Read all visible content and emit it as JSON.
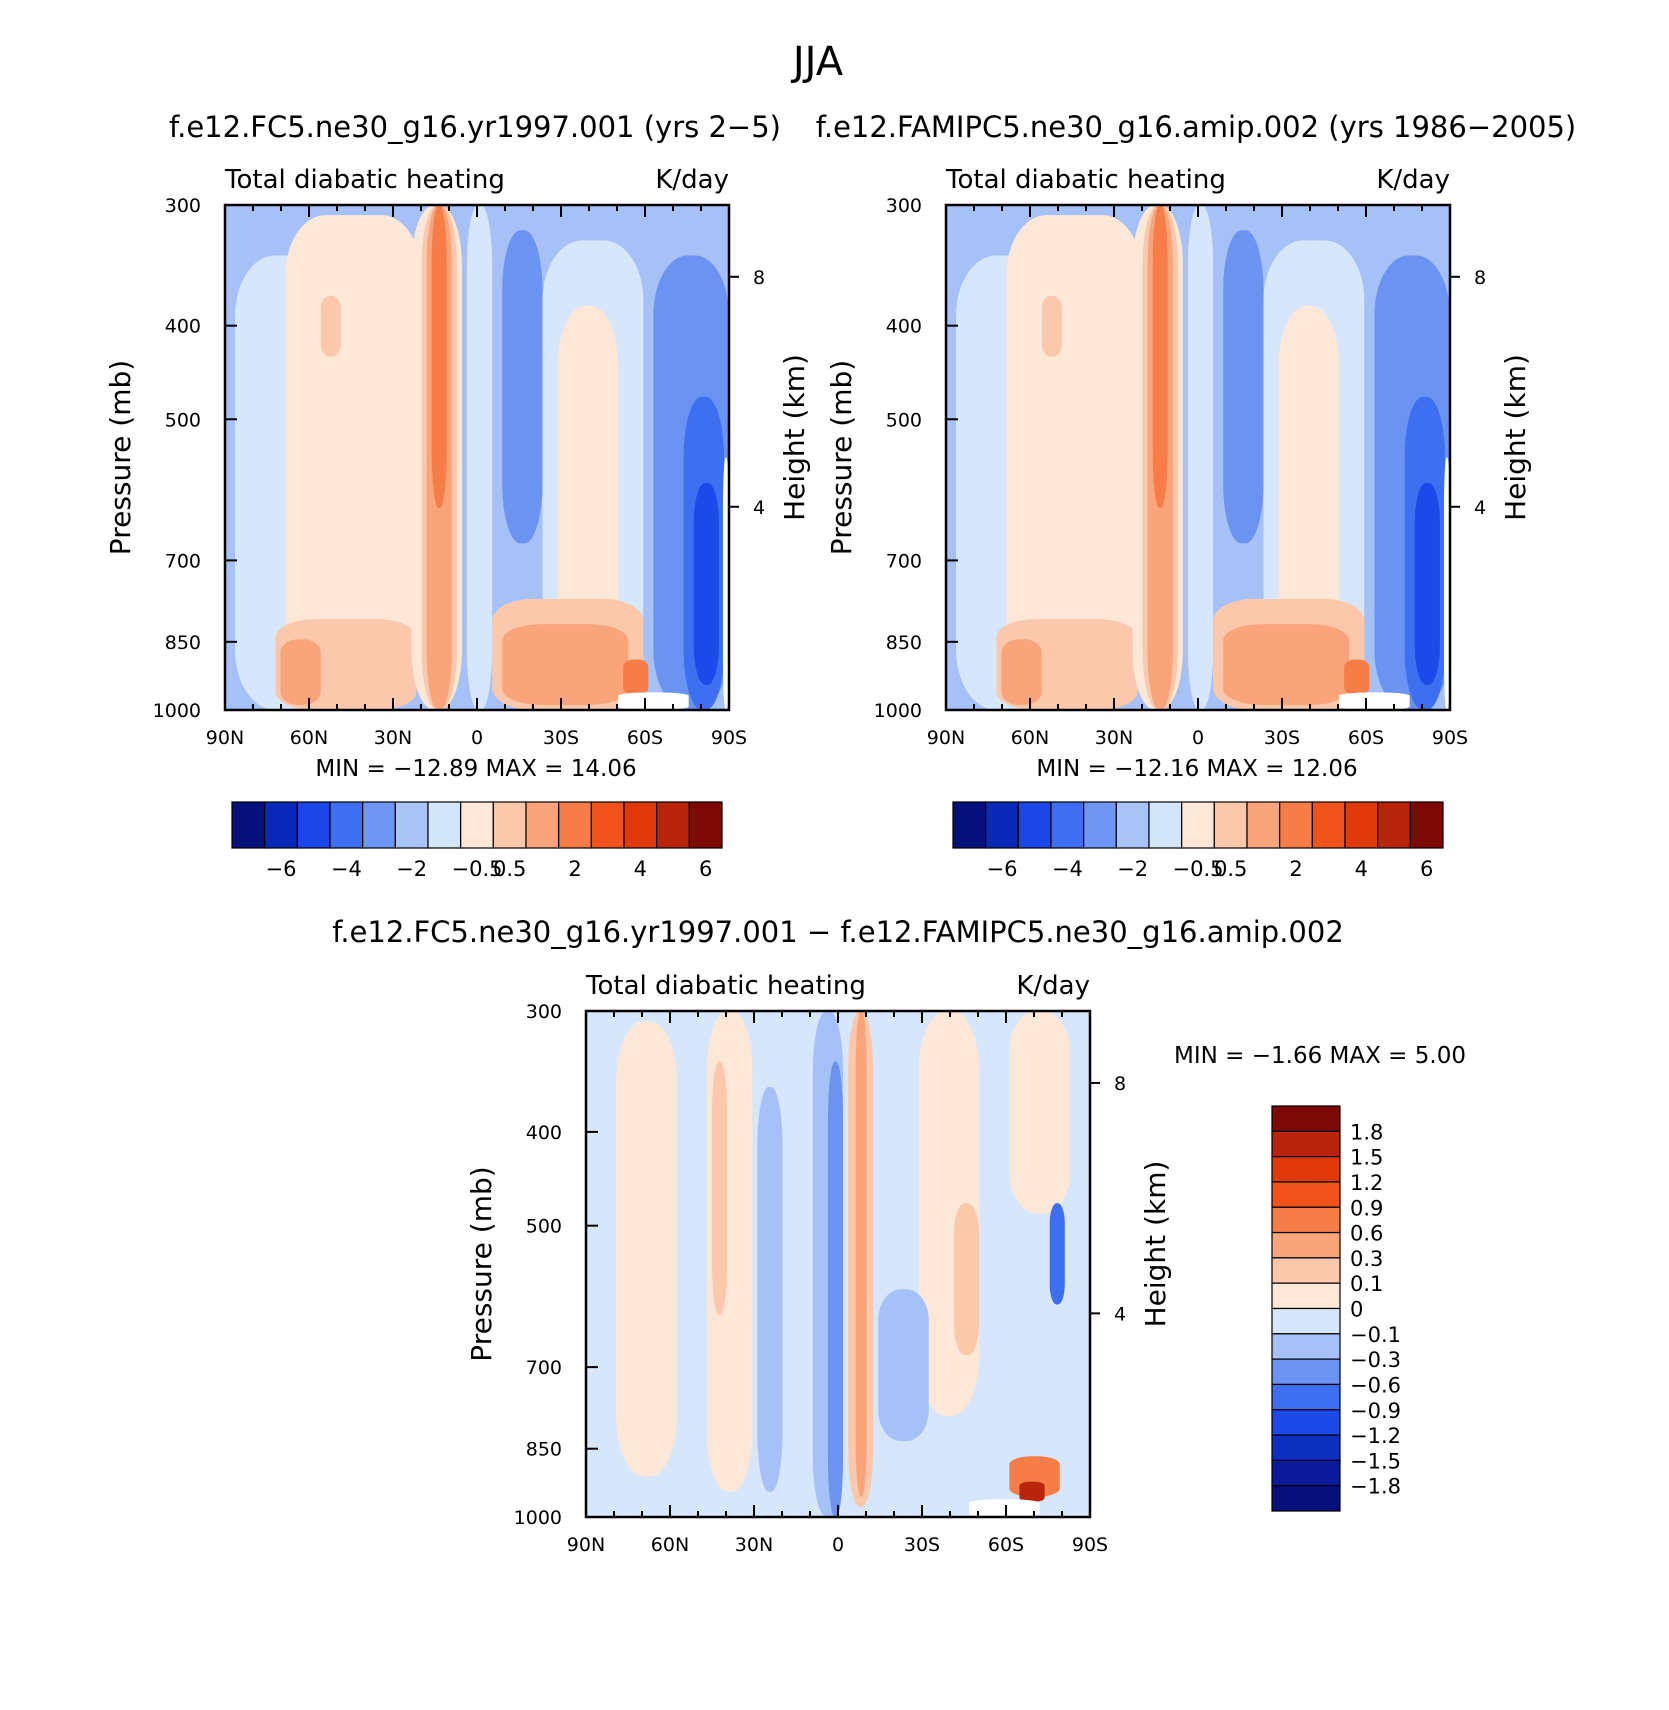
{
  "title": "JJA",
  "colors": {
    "neg": [
      "#0b1a8c",
      "#0d2fbf",
      "#1d49e8",
      "#3d6ff0",
      "#6b93f2",
      "#a5c1f7",
      "#d7e7fb"
    ],
    "neg_main": [
      "#05107a",
      "#0a29b8",
      "#1b45e6",
      "#3f6ff0",
      "#6f96f3",
      "#a8c4f7",
      "#d2e5fb"
    ],
    "pos": [
      "#fde8d8",
      "#fcc8ab",
      "#f9a47a",
      "#f67c48",
      "#f2521c",
      "#e03a0c",
      "#b9250a",
      "#7d0a05"
    ],
    "axis": "#000000"
  },
  "panels": [
    {
      "id": "panel-a",
      "subtitle": "f.e12.FC5.ne30_g16.yr1997.001 (yrs 2−5)",
      "left_label": "Total diabatic heating",
      "right_label": "K/day",
      "min_max": "MIN =  −12.89   MAX =   14.06",
      "variant": "model"
    },
    {
      "id": "panel-b",
      "subtitle": "f.e12.FAMIPC5.ne30_g16.amip.002 (yrs 1986−2005)",
      "left_label": "Total diabatic heating",
      "right_label": "K/day",
      "min_max": "MIN =  −12.16   MAX =   12.06",
      "variant": "obs"
    },
    {
      "id": "panel-c",
      "subtitle": "f.e12.FC5.ne30_g16.yr1997.001 − f.e12.FAMIPC5.ne30_g16.amip.002",
      "left_label": "Total diabatic heating",
      "right_label": "K/day",
      "min_max": "MIN =     −1.66   MAX =     5.00",
      "variant": "diff"
    }
  ],
  "chart_data": [
    {
      "type": "heatmap",
      "xlabel": "",
      "ylabel": "Pressure (mb)",
      "y2label": "Height (km)",
      "x_ticks": [
        "90N",
        "60N",
        "30N",
        "0",
        "30S",
        "60S",
        "90S"
      ],
      "y_ticks": [
        300,
        400,
        500,
        700,
        850,
        1000
      ],
      "y2_ticks": [
        8,
        4
      ],
      "ylim": [
        1000,
        300
      ],
      "legend_levels": [
        "−6",
        "−4",
        "−2",
        "−0.5",
        "0.5",
        "2",
        "4",
        "6"
      ],
      "min": -12.89,
      "max": 14.06
    },
    {
      "type": "heatmap",
      "xlabel": "",
      "ylabel": "Pressure (mb)",
      "y2label": "Height (km)",
      "x_ticks": [
        "90N",
        "60N",
        "30N",
        "0",
        "30S",
        "60S",
        "90S"
      ],
      "y_ticks": [
        300,
        400,
        500,
        700,
        850,
        1000
      ],
      "y2_ticks": [
        8,
        4
      ],
      "ylim": [
        1000,
        300
      ],
      "legend_levels": [
        "−6",
        "−4",
        "−2",
        "−0.5",
        "0.5",
        "2",
        "4",
        "6"
      ],
      "min": -12.16,
      "max": 12.06
    },
    {
      "type": "heatmap",
      "xlabel": "",
      "ylabel": "Pressure (mb)",
      "y2label": "Height (km)",
      "x_ticks": [
        "90N",
        "60N",
        "30N",
        "0",
        "30S",
        "60S",
        "90S"
      ],
      "y_ticks": [
        300,
        400,
        500,
        700,
        850,
        1000
      ],
      "y2_ticks": [
        8,
        4
      ],
      "ylim": [
        1000,
        300
      ],
      "legend_levels": [
        "1.8",
        "1.5",
        "1.2",
        "0.9",
        "0.6",
        "0.3",
        "0.1",
        "0",
        "−0.1",
        "−0.3",
        "−0.6",
        "−0.9",
        "−1.2",
        "−1.5",
        "−1.8"
      ],
      "min": -1.66,
      "max": 5.0
    }
  ]
}
